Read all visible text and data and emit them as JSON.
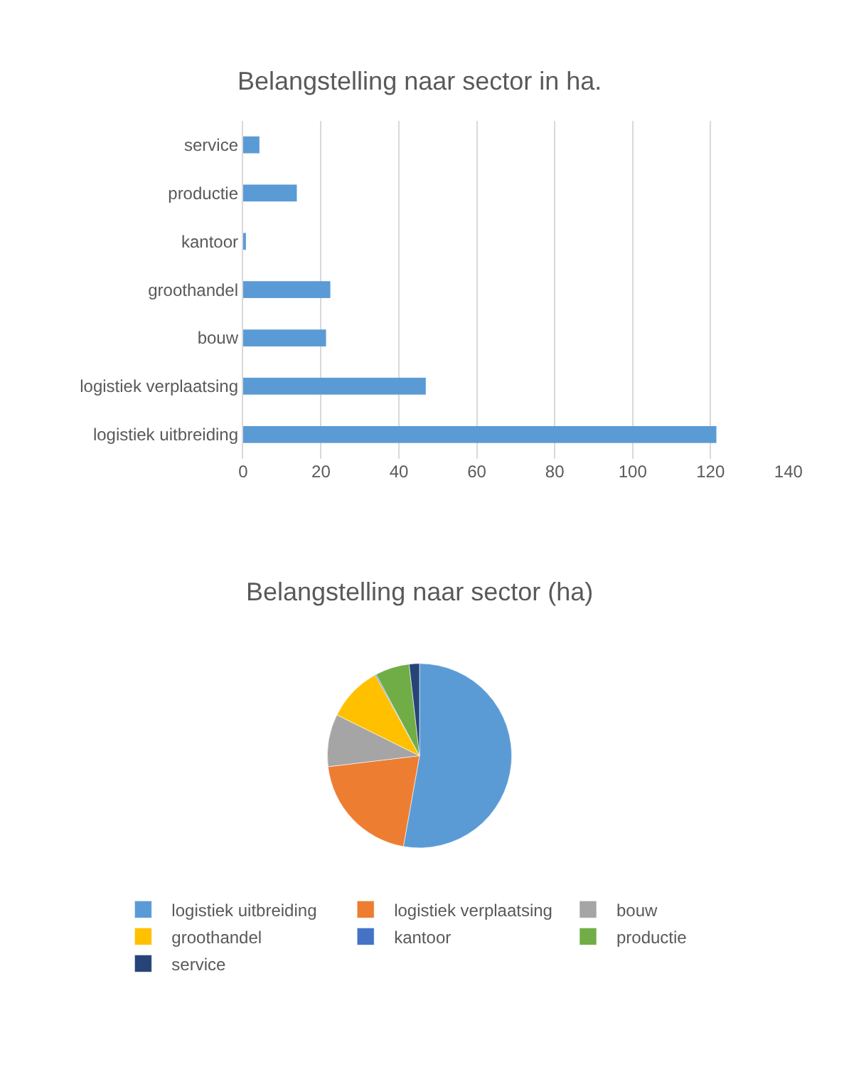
{
  "chart_data": [
    {
      "type": "bar",
      "title": "Belangstelling naar sector in ha.",
      "orientation": "horizontal",
      "categories": [
        "service",
        "productie",
        "kantoor",
        "groothandel",
        "bouw",
        "logistiek verplaatsing",
        "logistiek uitbreiding"
      ],
      "values": [
        4.2,
        13.8,
        0.5,
        22.4,
        21.3,
        46.9,
        121.5
      ],
      "color": "#5b9bd5",
      "xlim": [
        0,
        140
      ],
      "xticks": [
        0,
        20,
        40,
        60,
        80,
        100,
        120,
        140
      ],
      "grid": "x",
      "legend": false
    },
    {
      "type": "pie",
      "title": "Belangstelling naar sector (ha)",
      "categories": [
        "logistiek uitbreiding",
        "logistiek verplaatsing",
        "bouw",
        "groothandel",
        "kantoor",
        "productie",
        "service"
      ],
      "values": [
        52.8,
        20.3,
        9.2,
        9.7,
        0.2,
        6.0,
        1.8
      ],
      "colors": [
        "#5b9bd5",
        "#ed7d31",
        "#a5a5a5",
        "#ffc000",
        "#4472c4",
        "#70ad47",
        "#264478"
      ],
      "legend": "bottom"
    }
  ]
}
